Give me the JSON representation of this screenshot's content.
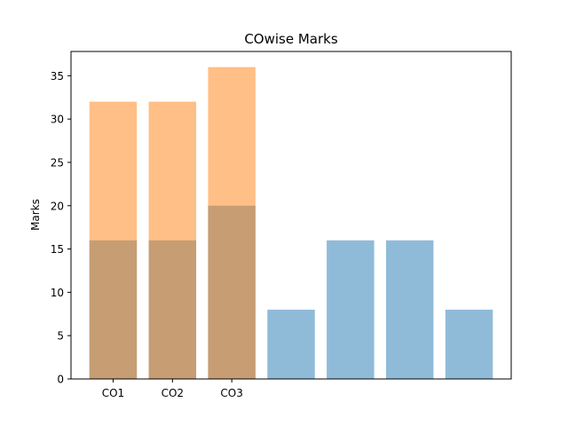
{
  "chart_data": {
    "type": "bar",
    "title": "COwise Marks",
    "xlabel": "",
    "ylabel": "Marks",
    "ylim": [
      0,
      37.8
    ],
    "xlim": [
      -0.71,
      6.71
    ],
    "yticks": [
      0,
      5,
      10,
      15,
      20,
      25,
      30,
      35
    ],
    "xticks": [
      {
        "x": 0,
        "label": "CO1"
      },
      {
        "x": 1,
        "label": "CO2"
      },
      {
        "x": 2,
        "label": "CO3"
      }
    ],
    "grid": false,
    "legend": "none",
    "series": [
      {
        "color": "#1f77b4",
        "alpha": 0.5,
        "x": [
          0,
          1,
          2,
          3,
          4,
          5,
          6
        ],
        "values": [
          16,
          16,
          20,
          8,
          16,
          16,
          8
        ]
      },
      {
        "color": "#ff7f0e",
        "alpha": 0.5,
        "x": [
          0,
          1,
          2
        ],
        "values": [
          32,
          32,
          36
        ]
      }
    ]
  }
}
